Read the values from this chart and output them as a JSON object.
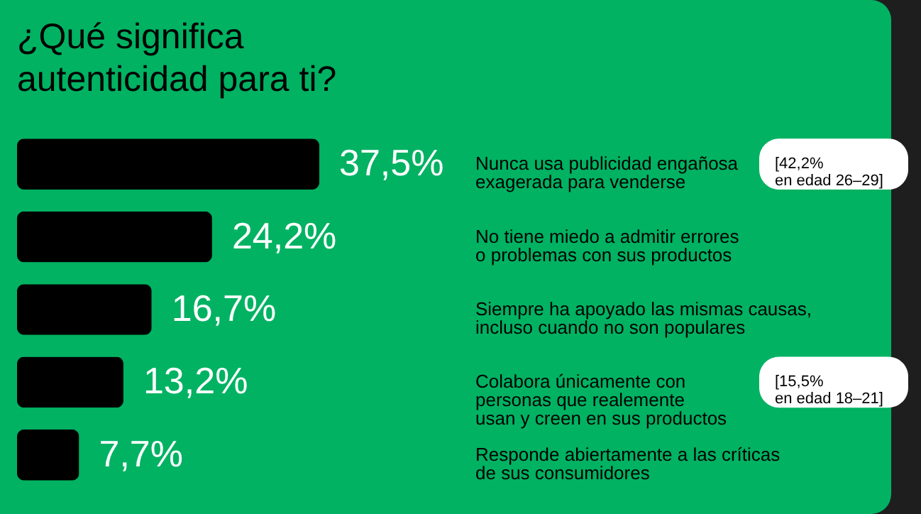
{
  "chart_data": {
    "type": "bar",
    "orientation": "horizontal",
    "title": "¿Qué significa\nautenticidad para ti?",
    "categories": [
      "Nunca usa publicidad engañosa\nexagerada para venderse",
      "No tiene miedo a admitir errores\no problemas con sus productos",
      "Siempre ha apoyado las mismas causas,\nincluso cuando no son populares",
      "Colabora únicamente con\npersonas que realemente\nusan y creen en sus productos",
      "Responde abiertamente a las críticas\nde sus consumidores"
    ],
    "values": [
      37.5,
      24.2,
      16.7,
      13.2,
      7.7
    ],
    "color": "#000000",
    "value_labels": [
      "37,5%",
      "24,2%",
      "16,7%",
      "13,2%",
      "7,7%"
    ],
    "annotations": [
      "[42,2%\nen edad 26–29]",
      "[15,5%\nen edad 18–21]"
    ]
  }
}
